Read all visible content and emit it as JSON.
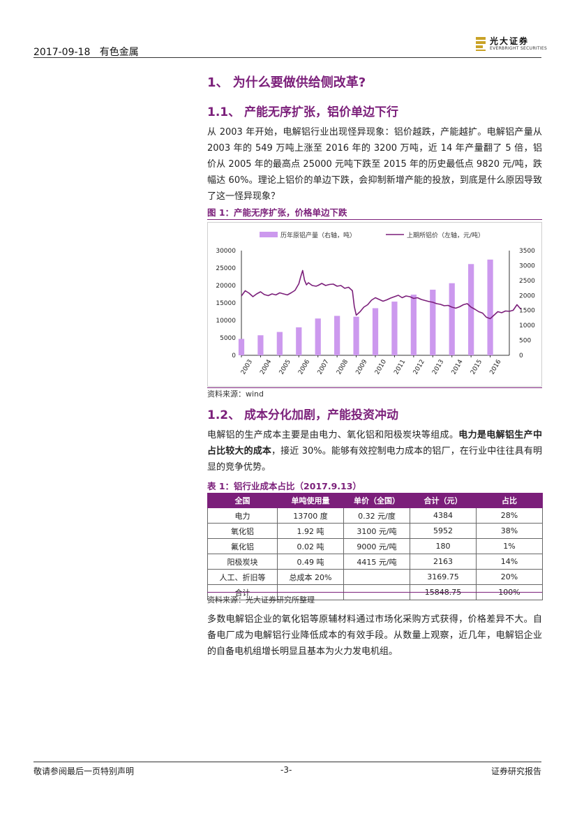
{
  "header": {
    "date": "2017-09-18",
    "sector": "有色金属",
    "logo_cn": "光大证券",
    "logo_en": "EVERBRIGHT SECURITIES"
  },
  "section1": {
    "title": "1、 为什么要做供给侧改革?"
  },
  "section11": {
    "title": "1.1、 产能无序扩张，铝价单边下行",
    "paragraph": "从 2003 年开始，电解铝行业出现怪异现象：铝价越跌，产能越扩。电解铝产量从 2003 年的 549 万吨上涨至 2016 年的 3200 万吨，近 14 年产量翻了 5 倍，铝价从 2005 年的最高点 25000 元吨下跌至 2015 年的历史最低点 9820 元/吨，跌幅达 60%。理论上铝价的单边下跌，会抑制新增产能的投放，到底是什么原因导致了这一怪异现象？"
  },
  "figure1": {
    "title": "图 1：产能无序扩张，价格单边下跌",
    "source": "资料来源：wind"
  },
  "chart_data": {
    "type": "bar",
    "categories": [
      "2003",
      "2004",
      "2005",
      "2006",
      "2007",
      "2008",
      "2009",
      "2010",
      "2011",
      "2012",
      "2013",
      "2014",
      "2015",
      "2016"
    ],
    "series": [
      {
        "name": "历年原铝产量（右轴，吨）",
        "type": "bar",
        "axis": "right",
        "values": [
          549,
          670,
          780,
          935,
          1230,
          1318,
          1290,
          1575,
          1795,
          2027,
          2193,
          2410,
          3050,
          3200
        ]
      },
      {
        "name": "上期所铝价（左轴，元/吨）",
        "type": "line",
        "axis": "left",
        "x": [
          2003.0,
          2003.2,
          2003.4,
          2003.6,
          2003.8,
          2004.0,
          2004.2,
          2004.4,
          2004.6,
          2004.8,
          2005.0,
          2005.2,
          2005.4,
          2005.6,
          2005.8,
          2006.0,
          2006.1,
          2006.2,
          2006.3,
          2006.4,
          2006.5,
          2006.7,
          2006.9,
          2007.0,
          2007.2,
          2007.4,
          2007.6,
          2007.8,
          2008.0,
          2008.2,
          2008.4,
          2008.6,
          2008.8,
          2008.9,
          2009.0,
          2009.2,
          2009.4,
          2009.6,
          2009.8,
          2010.0,
          2010.2,
          2010.4,
          2010.6,
          2010.8,
          2011.0,
          2011.2,
          2011.4,
          2011.6,
          2011.8,
          2012.0,
          2012.2,
          2012.4,
          2012.6,
          2012.8,
          2013.0,
          2013.2,
          2013.4,
          2013.6,
          2013.8,
          2014.0,
          2014.2,
          2014.4,
          2014.6,
          2014.8,
          2015.0,
          2015.2,
          2015.4,
          2015.6,
          2015.8,
          2016.0,
          2016.2,
          2016.4,
          2016.6,
          2016.8,
          2017.0,
          2017.2,
          2017.4,
          2017.6
        ],
        "values": [
          17000,
          18500,
          17800,
          16800,
          17600,
          18200,
          17400,
          17100,
          17600,
          17300,
          17900,
          17600,
          17300,
          17900,
          18600,
          20500,
          22500,
          24300,
          21500,
          20200,
          20800,
          20000,
          19800,
          20000,
          20600,
          20000,
          20300,
          20400,
          19800,
          20000,
          19200,
          19500,
          18500,
          14000,
          11500,
          12500,
          13800,
          14500,
          15800,
          16500,
          16000,
          15500,
          15900,
          16400,
          16800,
          17200,
          16500,
          17000,
          16800,
          16300,
          16500,
          16000,
          15700,
          15400,
          15200,
          14800,
          14600,
          14200,
          14300,
          13800,
          13500,
          13900,
          14500,
          14800,
          13800,
          13200,
          12500,
          12100,
          10900,
          10500,
          11500,
          12500,
          12200,
          12700,
          12600,
          12900,
          14500,
          13200
        ]
      }
    ],
    "yleft": {
      "lim": [
        0,
        30000
      ],
      "ticks": [
        "0",
        "5000",
        "10000",
        "15000",
        "20000",
        "25000",
        "30000"
      ]
    },
    "yright": {
      "lim": [
        0,
        3500
      ],
      "ticks": [
        "0",
        "500",
        "1000",
        "1500",
        "2000",
        "2500",
        "3000",
        "3500"
      ]
    },
    "legend": "top",
    "bar_color": "#cc99ee",
    "line_color": "#7b1f7a"
  },
  "section12": {
    "title": "1.2、 成本分化加剧，产能投资冲动",
    "para_a": "电解铝的生产成本主要是由电力、氧化铝和阳极炭块等组成。",
    "para_b": "电力是电解铝生产中占比较大的成本",
    "para_c": "，接近 30%。能够有效控制电力成本的铝厂，在行业中往往具有明显的竞争优势。"
  },
  "table1": {
    "title": "表 1：铝行业成本占比（2017.9.13）",
    "headers": [
      "全国",
      "单吨使用量",
      "单价（全国）",
      "合计（元）",
      "占比"
    ],
    "rows": [
      [
        "电力",
        "13700 度",
        "0.32 元/度",
        "4384",
        "28%"
      ],
      [
        "氧化铝",
        "1.92 吨",
        "3100 元/吨",
        "5952",
        "38%"
      ],
      [
        "氟化铝",
        "0.02 吨",
        "9000 元/吨",
        "180",
        "1%"
      ],
      [
        "阳极炭块",
        "0.49 吨",
        "4415 元/吨",
        "2163",
        "14%"
      ],
      [
        "人工、折旧等",
        "总成本 20%",
        "",
        "3169.75",
        "20%"
      ],
      [
        "合计",
        "",
        "",
        "15848.75",
        "100%"
      ]
    ],
    "source": "资料来源：光大证券研究所整理"
  },
  "closing": {
    "paragraph": "多数电解铝企业的氧化铝等原辅材料通过市场化采购方式获得，价格差异不大。自备电厂成为电解铝行业降低成本的有效手段。从数量上观察，近几年，电解铝企业的自备电机组增长明显且基本为火力发电机组。"
  },
  "footer": {
    "disclaimer": "敬请参阅最后一页特别声明",
    "page": "-3-",
    "doc_type": "证券研究报告"
  }
}
